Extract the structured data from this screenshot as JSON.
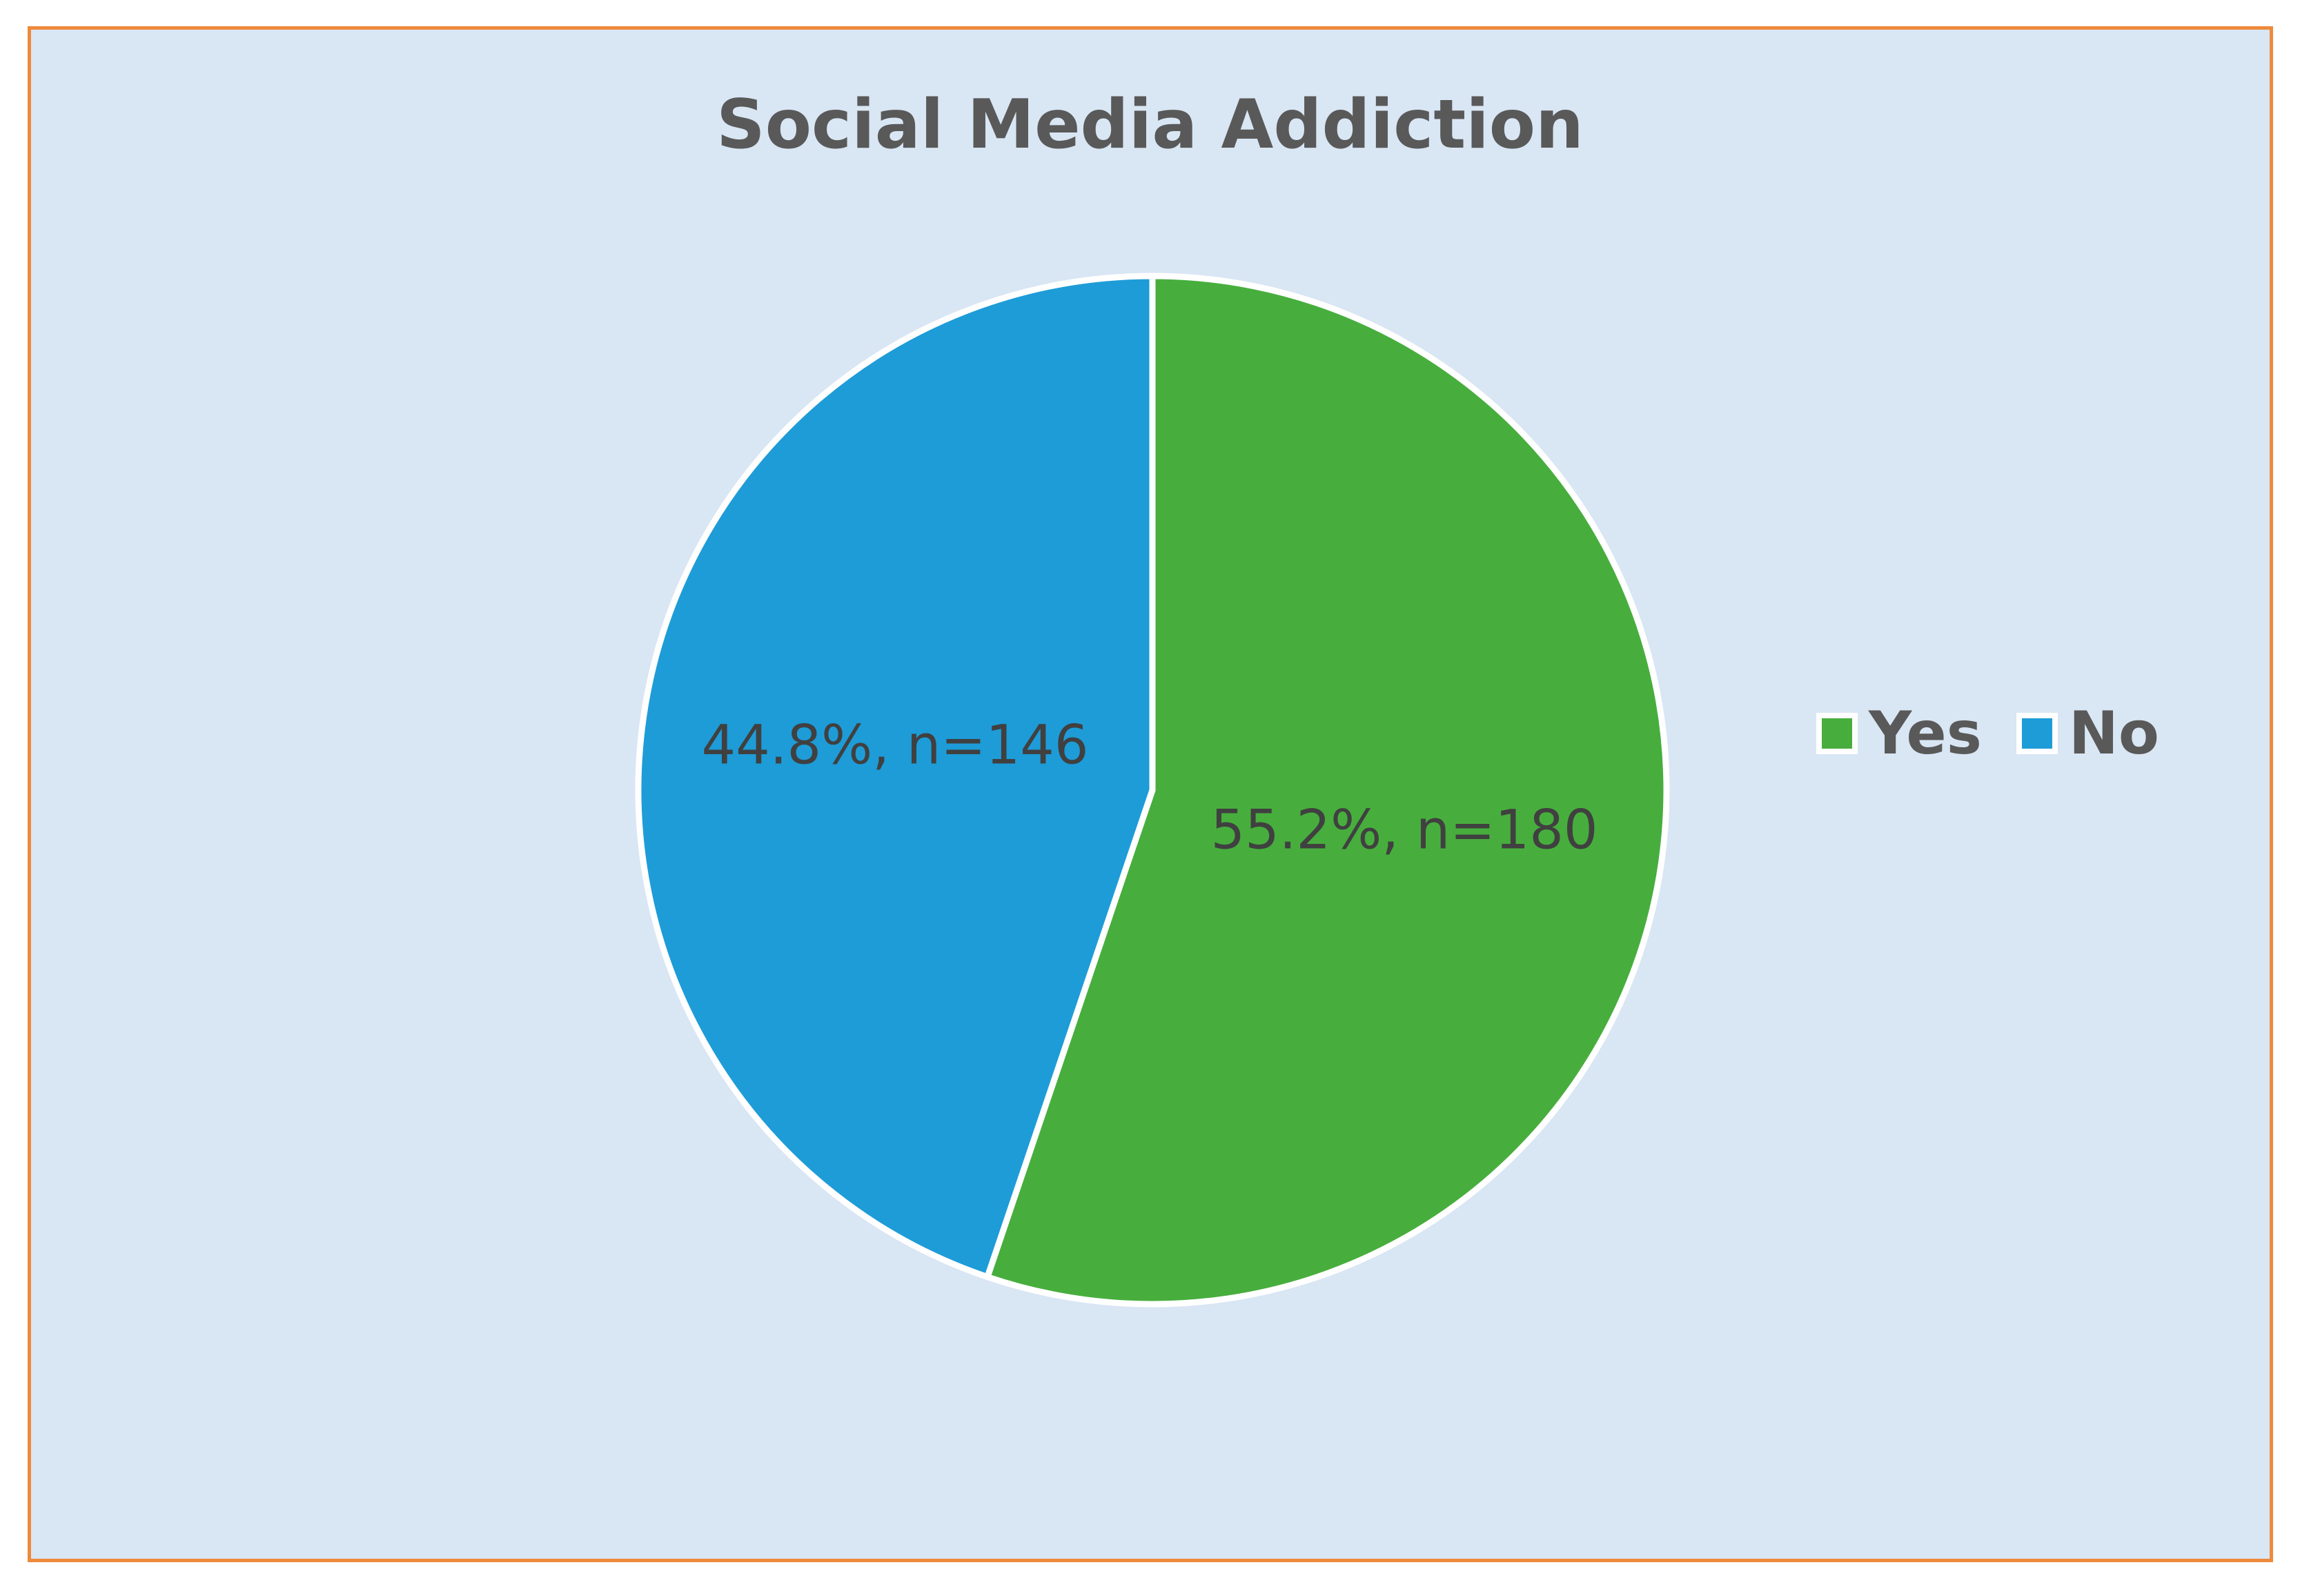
{
  "chart_data": {
    "type": "pie",
    "title": "Social Media Addiction",
    "slices": [
      {
        "name": "Yes",
        "percent": 55.2,
        "n": 180,
        "label": "55.2%, n=180",
        "color": "#47ae3d"
      },
      {
        "name": "No",
        "percent": 44.8,
        "n": 146,
        "label": "44.8%, n=146",
        "color": "#1e9cd8"
      }
    ],
    "legend": {
      "placement": "right",
      "entries": [
        "Yes",
        "No"
      ]
    },
    "start_angle": "12 o'clock",
    "direction": "clockwise"
  }
}
